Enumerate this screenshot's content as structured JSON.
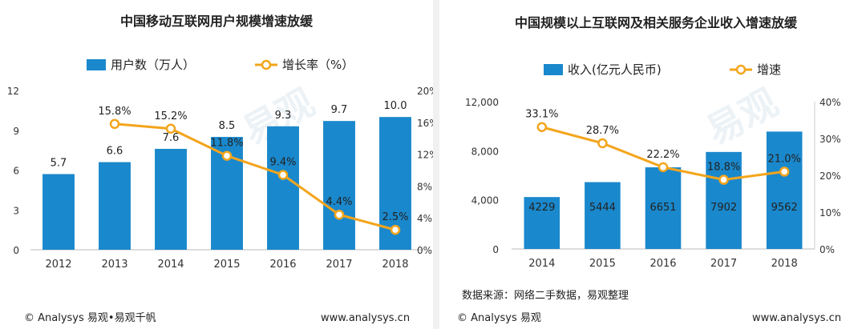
{
  "left_panel": {
    "footer_left": "© Analysys 易观•易观千帆",
    "footer_right": "www.analysys.cn",
    "watermark": "易观"
  },
  "right_panel": {
    "source": "数据来源：网络二手数据，易观整理",
    "footer_left": "© Analysys 易观",
    "footer_right": "www.analysys.cn",
    "watermark": "易观"
  },
  "chart_data": [
    {
      "type": "bar",
      "title": "中国移动互联网用户规模增速放缓",
      "categories": [
        "2012",
        "2013",
        "2014",
        "2015",
        "2016",
        "2017",
        "2018"
      ],
      "series": [
        {
          "name": "用户数（万人）",
          "type": "bar",
          "axis": "left",
          "values": [
            5.7,
            6.6,
            7.6,
            8.5,
            9.3,
            9.7,
            10.0
          ],
          "labels": [
            "5.7",
            "6.6",
            "7.6",
            "8.5",
            "9.3",
            "9.7",
            "10.0"
          ]
        },
        {
          "name": "增长率（%）",
          "type": "line",
          "axis": "right",
          "values": [
            null,
            15.8,
            15.2,
            11.8,
            9.4,
            4.4,
            2.5
          ],
          "labels": [
            "",
            "15.8%",
            "15.2%",
            "11.8%",
            "9.4%",
            "4.4%",
            "2.5%"
          ]
        }
      ],
      "y_left": {
        "ylim": [
          0,
          12
        ],
        "ticks": [
          "0",
          "3",
          "6",
          "9",
          "12"
        ],
        "tick_values": [
          0,
          3,
          6,
          9,
          12
        ]
      },
      "y_right": {
        "ylim": [
          0,
          20
        ],
        "ticks": [
          "0%",
          "4%",
          "8%",
          "12%",
          "16%",
          "20%"
        ],
        "tick_values": [
          0,
          4,
          8,
          12,
          16,
          20
        ]
      },
      "legend": "top",
      "grid": false,
      "colors": {
        "bar": "#1a88cc",
        "line": "#f3a51c"
      }
    },
    {
      "type": "bar",
      "title": "中国规模以上互联网及相关服务企业收入增速放缓",
      "categories": [
        "2014",
        "2015",
        "2016",
        "2017",
        "2018"
      ],
      "series": [
        {
          "name": "收入(亿元人民币)",
          "type": "bar",
          "axis": "left",
          "values": [
            4229,
            5444,
            6651,
            7902,
            9562
          ],
          "labels": [
            "4229",
            "5444",
            "6651",
            "7902",
            "9562"
          ]
        },
        {
          "name": "增速",
          "type": "line",
          "axis": "right",
          "values": [
            33.1,
            28.7,
            22.2,
            18.8,
            21.0
          ],
          "labels": [
            "33.1%",
            "28.7%",
            "22.2%",
            "18.8%",
            "21.0%"
          ]
        }
      ],
      "y_left": {
        "ylim": [
          0,
          12000
        ],
        "ticks": [
          "0",
          "4,000",
          "8,000",
          "12,000"
        ],
        "tick_values": [
          0,
          4000,
          8000,
          12000
        ]
      },
      "y_right": {
        "ylim": [
          0,
          40
        ],
        "ticks": [
          "0%",
          "10%",
          "20%",
          "30%",
          "40%"
        ],
        "tick_values": [
          0,
          10,
          20,
          30,
          40
        ]
      },
      "legend": "top",
      "grid": false,
      "colors": {
        "bar": "#1a88cc",
        "line": "#f3a51c"
      }
    }
  ]
}
